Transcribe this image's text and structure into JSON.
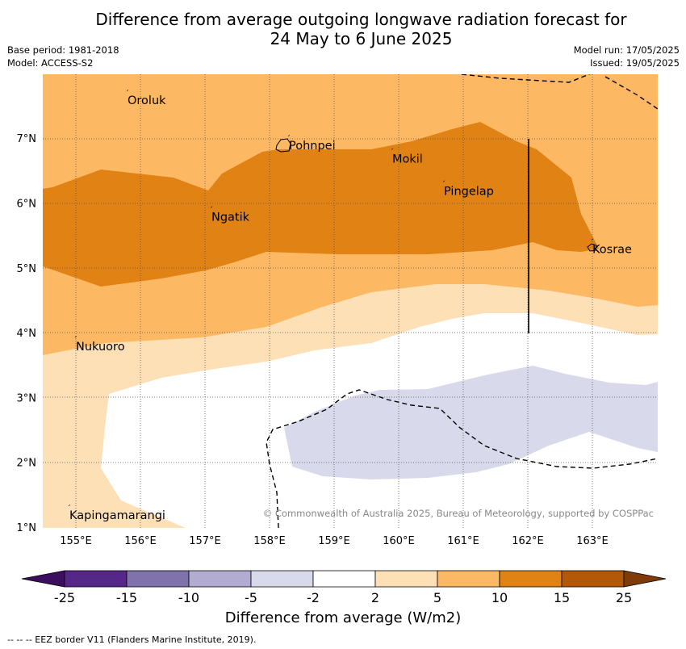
{
  "header": {
    "title_line1": "Difference from average outgoing longwave radiation forecast for",
    "title_line2": "24 May to 6 June 2025",
    "base_period": "Base period: 1981-2018",
    "model": "Model: ACCESS-S2",
    "model_run": "Model run: 17/05/2025",
    "issued": "Issued: 19/05/2025"
  },
  "map": {
    "lon_range": [
      154.5,
      164.0
    ],
    "lat_range": [
      1.0,
      8.0
    ],
    "x_ticks": [
      "155°E",
      "156°E",
      "157°E",
      "158°E",
      "159°E",
      "160°E",
      "161°E",
      "162°E",
      "163°E"
    ],
    "y_ticks": [
      "1°N",
      "2°N",
      "3°N",
      "4°N",
      "5°N",
      "6°N",
      "7°N"
    ],
    "places": [
      {
        "name": "Oroluk",
        "lon": 155.8,
        "lat": 7.6
      },
      {
        "name": "Pohnpei",
        "lon": 158.3,
        "lat": 6.9
      },
      {
        "name": "Mokil",
        "lon": 159.9,
        "lat": 6.7
      },
      {
        "name": "Pingelap",
        "lon": 160.7,
        "lat": 6.2
      },
      {
        "name": "Ngatik",
        "lon": 157.1,
        "lat": 5.8
      },
      {
        "name": "Kosrae",
        "lon": 163.0,
        "lat": 5.3
      },
      {
        "name": "Nukuoro",
        "lon": 155.0,
        "lat": 3.8
      },
      {
        "name": "Kapingamarangi",
        "lon": 154.9,
        "lat": 1.2
      }
    ],
    "copyright": "© Commonwealth of Australia 2025, Bureau of Meteorology, supported by COSPPac"
  },
  "colorbar": {
    "labels": [
      "-25",
      "-15",
      "-10",
      "-5",
      "-2",
      "2",
      "5",
      "10",
      "15",
      "25"
    ],
    "colors": [
      "#3b0f5e",
      "#542788",
      "#8073ac",
      "#b2abd2",
      "#d8daeb",
      "#ffffff",
      "#fee0b6",
      "#fdb863",
      "#e08214",
      "#b35806",
      "#7f3b08"
    ],
    "title": "Difference from average (W/m2)"
  },
  "footer": {
    "legend_text": "--  --  -- EEZ border V11 (Flanders Marine Institute, 2019)."
  }
}
